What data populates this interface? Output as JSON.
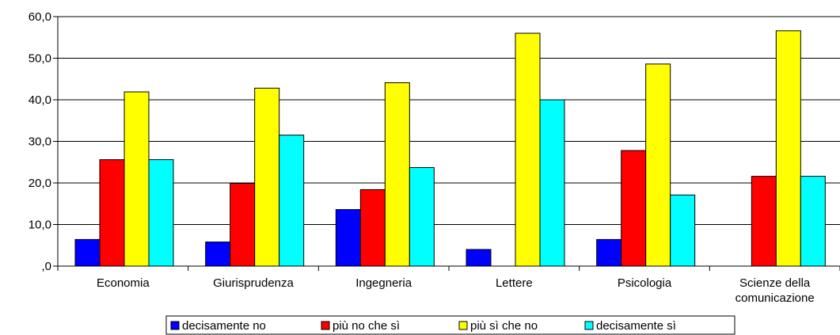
{
  "chart_data": {
    "type": "bar",
    "categories": [
      "Economia",
      "Giurisprudenza",
      "Ingegneria",
      "Lettere",
      "Psicologia",
      "Scienze della comunicazione"
    ],
    "category_lines": [
      [
        "Economia"
      ],
      [
        "Giurisprudenza"
      ],
      [
        "Ingegneria"
      ],
      [
        "Lettere"
      ],
      [
        "Psicologia"
      ],
      [
        "Scienze della",
        "comunicazione"
      ]
    ],
    "series": [
      {
        "name": "decisamente no",
        "color": "#0000FF",
        "values": [
          6.4,
          5.8,
          13.6,
          4.0,
          6.4,
          0
        ]
      },
      {
        "name": "più no che sì",
        "color": "#FF0000",
        "values": [
          25.6,
          19.9,
          18.4,
          0,
          27.8,
          21.6
        ]
      },
      {
        "name": "più sì che no",
        "color": "#FFFF00",
        "values": [
          41.9,
          42.8,
          44.1,
          56.0,
          48.6,
          56.6
        ]
      },
      {
        "name": "decisamente sì",
        "color": "#00FFFF",
        "values": [
          25.6,
          31.5,
          23.7,
          40.0,
          17.1,
          21.6
        ]
      }
    ],
    "ylim": [
      0,
      60
    ],
    "yticks": [
      ",0",
      "10,0",
      "20,0",
      "30,0",
      "40,0",
      "50,0",
      "60,0"
    ],
    "grid": true,
    "legend_position": "bottom"
  }
}
